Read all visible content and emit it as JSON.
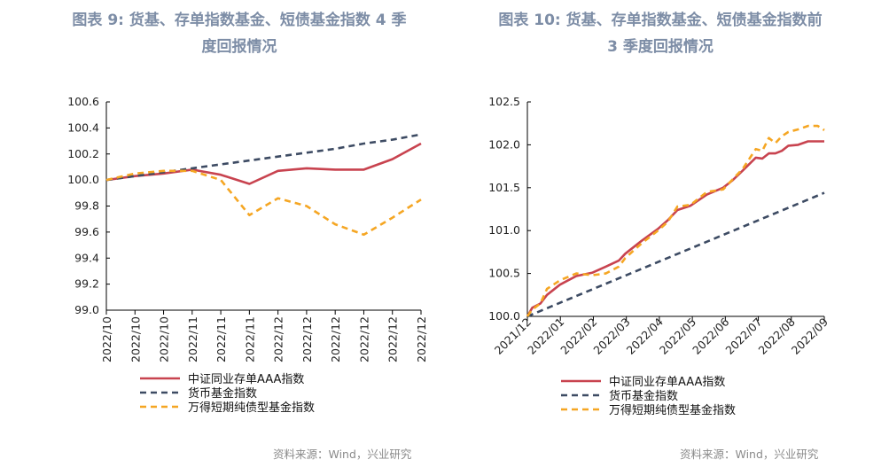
{
  "colors": {
    "title": "#7d8da6",
    "series_red": "#c8434f",
    "series_navy": "#3d4b63",
    "series_orange": "#f5a623",
    "axis": "#000000"
  },
  "left": {
    "title_line1": "图表 9:   货基、存单指数基金、短债基金指数 4 季",
    "title_line2": "度回报情况",
    "source": "资料来源：Wind，兴业研究"
  },
  "right": {
    "title_line1": "图表 10:   货基、存单指数基金、短债基金指数前",
    "title_line2": "3 季度回报情况",
    "source": "资料来源：Wind，兴业研究"
  },
  "chart_data": [
    {
      "type": "line",
      "x_tick_labels": [
        "2022/10",
        "2022/10",
        "2022/10",
        "2022/11",
        "2022/11",
        "2022/11",
        "2022/12",
        "2022/12",
        "2022/12",
        "2022/12",
        "2022/12",
        "2022/12"
      ],
      "y_tick_labels": [
        "100.6",
        "100.4",
        "100.2",
        "100.0",
        "99.8",
        "99.6",
        "99.4",
        "99.2",
        "99.0"
      ],
      "ylim": [
        99.0,
        100.6
      ],
      "grid": false,
      "legend_position": "bottom",
      "series": [
        {
          "name": "中证同业存单AAA指数",
          "style": "solid",
          "color": "#c8434f",
          "values": [
            100.0,
            100.03,
            100.05,
            100.08,
            100.04,
            99.97,
            100.07,
            100.09,
            100.08,
            100.08,
            100.16,
            100.28
          ]
        },
        {
          "name": "货币基金指数",
          "style": "dashed",
          "color": "#3d4b63",
          "values": [
            100.0,
            100.03,
            100.06,
            100.09,
            100.12,
            100.15,
            100.18,
            100.21,
            100.24,
            100.28,
            100.31,
            100.35
          ]
        },
        {
          "name": "万得短期纯债型基金指数",
          "style": "dashed",
          "color": "#f5a623",
          "values": [
            100.0,
            100.05,
            100.07,
            100.07,
            100.0,
            99.73,
            99.86,
            99.8,
            99.66,
            99.58,
            99.71,
            99.85
          ]
        }
      ]
    },
    {
      "type": "line",
      "x_tick_labels": [
        "2021/12",
        "2022/01",
        "2022/02",
        "2022/03",
        "2022/04",
        "2022/05",
        "2022/06",
        "2022/07",
        "2022/08",
        "2022/09"
      ],
      "y_tick_labels": [
        "102.5",
        "102.0",
        "101.5",
        "101.0",
        "100.5",
        "100.0"
      ],
      "ylim": [
        100.0,
        102.5
      ],
      "grid": false,
      "legend_position": "bottom",
      "series": [
        {
          "name": "中证同业存单AAA指数",
          "style": "solid",
          "color": "#c8434f",
          "x": [
            0,
            0.15,
            0.4,
            0.6,
            1.0,
            1.5,
            2.0,
            2.4,
            2.8,
            3.0,
            3.5,
            4.0,
            4.3,
            4.6,
            5.0,
            5.5,
            6.0,
            6.3,
            6.6,
            7.0,
            7.2,
            7.4,
            7.6,
            7.8,
            8.0,
            8.3,
            8.6,
            8.9,
            9.1
          ],
          "values": [
            100.0,
            100.1,
            100.15,
            100.25,
            100.37,
            100.47,
            100.51,
            100.58,
            100.65,
            100.73,
            100.88,
            101.02,
            101.12,
            101.24,
            101.29,
            101.42,
            101.5,
            101.59,
            101.7,
            101.85,
            101.84,
            101.9,
            101.9,
            101.93,
            101.99,
            102.0,
            102.04,
            102.04,
            102.04
          ]
        },
        {
          "name": "货币基金指数",
          "style": "dashed",
          "color": "#3d4b63",
          "x": [
            0,
            9.1
          ],
          "values": [
            100.0,
            101.44
          ]
        },
        {
          "name": "万得短期纯债型基金指数",
          "style": "dashed",
          "color": "#f5a623",
          "x": [
            0,
            0.15,
            0.4,
            0.6,
            1.0,
            1.5,
            2.0,
            2.4,
            2.8,
            3.0,
            3.5,
            4.0,
            4.3,
            4.6,
            5.0,
            5.5,
            6.0,
            6.3,
            6.6,
            7.0,
            7.2,
            7.4,
            7.6,
            7.8,
            8.0,
            8.3,
            8.6,
            8.9,
            9.1
          ],
          "values": [
            100.0,
            100.08,
            100.15,
            100.32,
            100.42,
            100.5,
            100.48,
            100.5,
            100.58,
            100.68,
            100.85,
            101.0,
            101.1,
            101.28,
            101.3,
            101.45,
            101.48,
            101.6,
            101.72,
            101.95,
            101.93,
            102.08,
            102.02,
            102.1,
            102.15,
            102.18,
            102.22,
            102.22,
            102.17
          ]
        }
      ]
    }
  ]
}
